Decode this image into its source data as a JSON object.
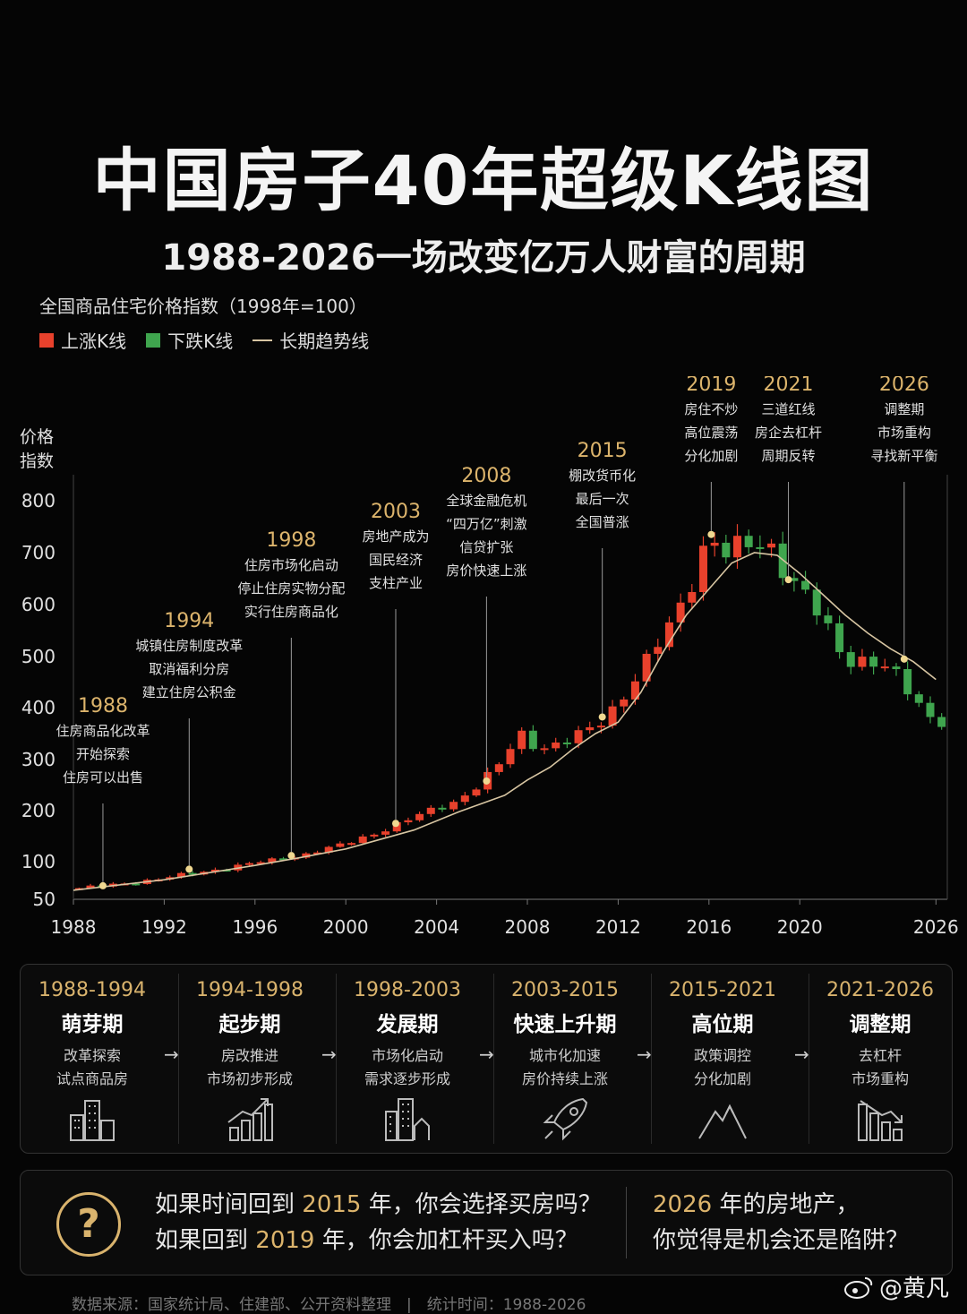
{
  "header": {
    "title_a": "中国房子",
    "title_gold": "40年",
    "title_b": "超级K线图",
    "subtitle_years": "1988-2026",
    "subtitle_text": "一场改变亿万人财富的周期"
  },
  "chart_header": {
    "index_title": "全国商品住宅价格指数（1998年=100）",
    "legend_up": "上涨K线",
    "legend_down": "下跌K线",
    "legend_trend": "长期趋势线",
    "y_label_1": "价格",
    "y_label_2": "指数"
  },
  "colors": {
    "up": "#e8412c",
    "down": "#3fa54e",
    "trend": "#d7c5a2",
    "gold": "#dcb46c"
  },
  "chart_data": {
    "type": "candlestick",
    "x_ticks": [
      "1988",
      "1992",
      "1996",
      "2000",
      "2004",
      "2008",
      "2012",
      "2016",
      "2020",
      "2026"
    ],
    "x_tick_values": [
      1988,
      1992,
      1996,
      2000,
      2004,
      2008,
      2012,
      2016,
      2020,
      2026
    ],
    "y_ticks": [
      50,
      100,
      200,
      300,
      400,
      500,
      600,
      700,
      800
    ],
    "xlim": [
      1988,
      2026.5
    ],
    "ylim": [
      50,
      800
    ],
    "series_points": [
      [
        1988,
        64
      ],
      [
        1990,
        70
      ],
      [
        1992,
        78
      ],
      [
        1994,
        88
      ],
      [
        1996,
        98
      ],
      [
        1998,
        112
      ],
      [
        2000,
        135
      ],
      [
        2002,
        168
      ],
      [
        2004,
        205
      ],
      [
        2005,
        222
      ],
      [
        2006,
        255
      ],
      [
        2007,
        300
      ],
      [
        2007.6,
        355
      ],
      [
        2008.3,
        330
      ],
      [
        2009,
        322
      ],
      [
        2010,
        340
      ],
      [
        2011,
        365
      ],
      [
        2012,
        410
      ],
      [
        2013,
        470
      ],
      [
        2014,
        540
      ],
      [
        2015,
        620
      ],
      [
        2015.5,
        680
      ],
      [
        2016,
        735
      ],
      [
        2016.5,
        700
      ],
      [
        2017,
        690
      ],
      [
        2017.5,
        720
      ],
      [
        2018,
        715
      ],
      [
        2018.5,
        725
      ],
      [
        2019,
        700
      ],
      [
        2019.5,
        648
      ],
      [
        2020,
        628
      ],
      [
        2020.5,
        600
      ],
      [
        2021,
        570
      ],
      [
        2021.5,
        530
      ],
      [
        2022,
        500
      ],
      [
        2022.5,
        490
      ],
      [
        2023,
        495
      ],
      [
        2023.5,
        480
      ],
      [
        2024,
        470
      ],
      [
        2024.5,
        450
      ],
      [
        2025,
        420
      ],
      [
        2025.5,
        395
      ],
      [
        2026,
        375
      ]
    ],
    "trend_points": [
      [
        1988,
        62
      ],
      [
        1992,
        76
      ],
      [
        1996,
        95
      ],
      [
        1998,
        108
      ],
      [
        2000,
        125
      ],
      [
        2003,
        162
      ],
      [
        2005,
        198
      ],
      [
        2007,
        230
      ],
      [
        2008,
        260
      ],
      [
        2009,
        285
      ],
      [
        2010,
        320
      ],
      [
        2011,
        350
      ],
      [
        2012,
        372
      ],
      [
        2013,
        430
      ],
      [
        2014,
        510
      ],
      [
        2015,
        580
      ],
      [
        2016,
        630
      ],
      [
        2017,
        680
      ],
      [
        2018,
        700
      ],
      [
        2019,
        695
      ],
      [
        2020,
        660
      ],
      [
        2021,
        620
      ],
      [
        2022,
        580
      ],
      [
        2023,
        545
      ],
      [
        2024,
        515
      ],
      [
        2025,
        490
      ],
      [
        2026,
        455
      ]
    ],
    "annotations": [
      {
        "year": "1988",
        "x": 1989.3,
        "y": 68,
        "label_y": 795,
        "lines": [
          "住房商品化改革",
          "开始探索",
          "住房可以出售"
        ]
      },
      {
        "year": "1994",
        "x": 1993.1,
        "y": 90,
        "label_y": 700,
        "lines": [
          "城镇住房制度改革",
          "取消福利分房",
          "建立住房公积金"
        ]
      },
      {
        "year": "1998",
        "x": 1997.6,
        "y": 112,
        "label_y": 610,
        "lines": [
          "住房市场化启动",
          "停止住房实物分配",
          "实行住房商品化"
        ]
      },
      {
        "year": "2003",
        "x": 2002.2,
        "y": 175,
        "label_y": 578,
        "lines": [
          "房地产成为",
          "国民经济",
          "支柱产业"
        ]
      },
      {
        "year": "2008",
        "x": 2006.2,
        "y": 258,
        "label_y": 538,
        "lines": [
          "全球金融危机",
          "“四万亿”刺激",
          "信贷扩张",
          "房价快速上涨"
        ]
      },
      {
        "year": "2015",
        "x": 2011.3,
        "y": 382,
        "label_y": 510,
        "lines": [
          "棚改货币化",
          "最后一次",
          "全国普涨"
        ]
      },
      {
        "year": "2019",
        "x": 2016.1,
        "y": 735,
        "label_y": 436,
        "lines": [
          "房住不炒",
          "高位震荡",
          "分化加剧"
        ]
      },
      {
        "year": "2021",
        "x": 2019.5,
        "y": 648,
        "label_y": 436,
        "lines": [
          "三道红线",
          "房企去杠杆",
          "周期反转"
        ]
      },
      {
        "year": "2026",
        "x": 2024.6,
        "y": 495,
        "label_y": 436,
        "lines": [
          "调整期",
          "市场重构",
          "寻找新平衡"
        ]
      }
    ]
  },
  "phases": [
    {
      "years": "1988-1994",
      "name": "萌芽期",
      "desc1": "改革探索",
      "desc2": "试点商品房",
      "icon": "buildings-icon"
    },
    {
      "years": "1994-1998",
      "name": "起步期",
      "desc1": "房改推进",
      "desc2": "市场初步形成",
      "icon": "bar-growth-icon"
    },
    {
      "years": "1998-2003",
      "name": "发展期",
      "desc1": "市场化启动",
      "desc2": "需求逐步形成",
      "icon": "city-icon"
    },
    {
      "years": "2003-2015",
      "name": "快速上升期",
      "desc1": "城市化加速",
      "desc2": "房价持续上涨",
      "icon": "rocket-icon"
    },
    {
      "years": "2015-2021",
      "name": "高位期",
      "desc1": "政策调控",
      "desc2": "分化加剧",
      "icon": "mountain-icon"
    },
    {
      "years": "2021-2026",
      "name": "调整期",
      "desc1": "去杠杆",
      "desc2": "市场重构",
      "icon": "bar-decline-icon"
    }
  ],
  "question": {
    "l1_a": "如果时间回到",
    "l1_gold": "2015",
    "l1_b": "年，你会选择买房吗？",
    "l2_a": "如果回到",
    "l2_gold": "2019",
    "l2_b": "年，你会加杠杆买入吗？",
    "r1_gold": "2026",
    "r1_b": "年的房地产，",
    "r2": "你觉得是机会还是陷阱？"
  },
  "footer": "数据来源：国家统计局、住建部、公开资料整理　|　统计时间：1988-2026",
  "watermark": "@黄凡"
}
